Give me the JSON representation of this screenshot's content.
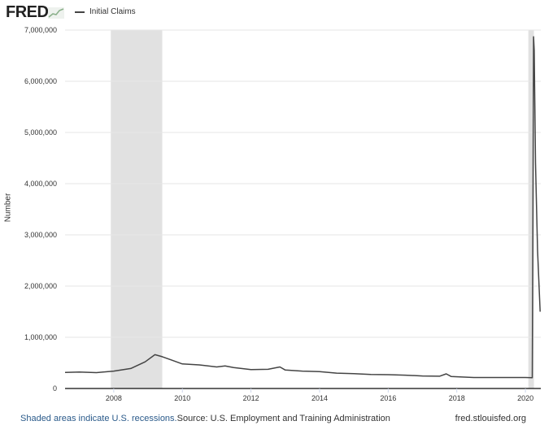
{
  "header": {
    "logo": "FRED",
    "legend": "Initial Claims"
  },
  "footer": {
    "recession_note": "Shaded areas indicate U.S. recessions.",
    "source": "Source: U.S. Employment and Training Administration",
    "site": "fred.stlouisfed.org"
  },
  "colors": {
    "line": "#444444",
    "recession": "#e1e1e1",
    "grid": "#e6e6e6",
    "link": "#2a5a8a"
  },
  "chart_data": {
    "type": "line",
    "title": "",
    "xlabel": "",
    "ylabel": "Number",
    "ylim": [
      0,
      7000000
    ],
    "xlim": [
      "2006-08-01",
      "2020-06-13"
    ],
    "grid": true,
    "legend": "top-left",
    "yticks": [
      "0",
      "1,000,000",
      "2,000,000",
      "3,000,000",
      "4,000,000",
      "5,000,000",
      "6,000,000",
      "7,000,000"
    ],
    "xticks": [
      "2008",
      "2010",
      "2012",
      "2014",
      "2016",
      "2018",
      "2020"
    ],
    "recessions": [
      [
        "2007-12-01",
        "2009-06-01"
      ],
      [
        "2020-02-01",
        "2020-04-01"
      ]
    ],
    "series": [
      {
        "name": "Initial Claims",
        "points": [
          [
            "2006-08-01",
            315000
          ],
          [
            "2007-01-01",
            320000
          ],
          [
            "2007-07-01",
            310000
          ],
          [
            "2008-01-01",
            340000
          ],
          [
            "2008-07-01",
            390000
          ],
          [
            "2008-12-01",
            520000
          ],
          [
            "2009-03-15",
            660000
          ],
          [
            "2009-06-01",
            620000
          ],
          [
            "2009-09-01",
            560000
          ],
          [
            "2010-01-01",
            480000
          ],
          [
            "2010-07-01",
            460000
          ],
          [
            "2011-01-01",
            420000
          ],
          [
            "2011-04-01",
            440000
          ],
          [
            "2011-07-01",
            410000
          ],
          [
            "2012-01-01",
            370000
          ],
          [
            "2012-07-01",
            375000
          ],
          [
            "2012-11-05",
            420000
          ],
          [
            "2013-01-01",
            360000
          ],
          [
            "2013-07-01",
            340000
          ],
          [
            "2014-01-01",
            330000
          ],
          [
            "2014-07-01",
            300000
          ],
          [
            "2015-01-01",
            290000
          ],
          [
            "2015-07-01",
            275000
          ],
          [
            "2016-01-01",
            270000
          ],
          [
            "2016-07-01",
            260000
          ],
          [
            "2017-01-01",
            245000
          ],
          [
            "2017-07-01",
            240000
          ],
          [
            "2017-09-10",
            285000
          ],
          [
            "2017-11-01",
            235000
          ],
          [
            "2018-07-01",
            215000
          ],
          [
            "2019-01-01",
            215000
          ],
          [
            "2019-07-01",
            215000
          ],
          [
            "2020-01-01",
            215000
          ],
          [
            "2020-03-14",
            210000
          ],
          [
            "2020-03-21",
            3300000
          ],
          [
            "2020-03-28",
            6870000
          ],
          [
            "2020-04-04",
            6600000
          ],
          [
            "2020-04-18",
            4400000
          ],
          [
            "2020-05-09",
            2700000
          ],
          [
            "2020-06-06",
            1500000
          ]
        ]
      }
    ]
  }
}
